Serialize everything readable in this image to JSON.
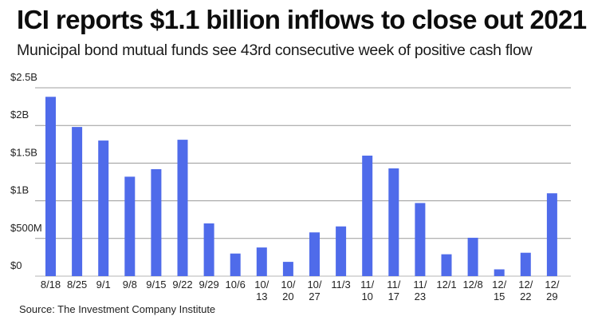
{
  "header": {
    "title": "ICI reports $1.1 billion inflows to close out 2021",
    "subtitle": "Municipal bond mutual funds see 43rd consecutive week of positive cash flow"
  },
  "footer": {
    "source": "Source: The Investment Company Institute"
  },
  "chart_data": {
    "type": "bar",
    "title": "ICI reports $1.1 billion inflows to close out 2021",
    "subtitle": "Municipal bond mutual funds see 43rd consecutive week of positive cash flow",
    "xlabel": "",
    "ylabel": "",
    "units": "USD billions",
    "ylim": [
      0,
      2.5
    ],
    "grid": true,
    "legend": "none",
    "bar_color": "#4f6bea",
    "yticks": [
      {
        "value": 0,
        "label": "$0"
      },
      {
        "value": 0.5,
        "label": "$500M"
      },
      {
        "value": 1.0,
        "label": "$1B"
      },
      {
        "value": 1.5,
        "label": "$1.5B"
      },
      {
        "value": 2.0,
        "label": "$2B"
      },
      {
        "value": 2.5,
        "label": "$2.5B"
      }
    ],
    "categories": [
      [
        "8/18"
      ],
      [
        "8/25"
      ],
      [
        "9/1"
      ],
      [
        "9/8"
      ],
      [
        "9/15"
      ],
      [
        "9/22"
      ],
      [
        "9/29"
      ],
      [
        "10/6"
      ],
      [
        "10/",
        "13"
      ],
      [
        "10/",
        "20"
      ],
      [
        "10/",
        "27"
      ],
      [
        "11/3"
      ],
      [
        "11/",
        "10"
      ],
      [
        "11/",
        "17"
      ],
      [
        "11/",
        "23"
      ],
      [
        "12/1"
      ],
      [
        "12/8"
      ],
      [
        "12/",
        "15"
      ],
      [
        "12/",
        "22"
      ],
      [
        "12/",
        "29"
      ]
    ],
    "values": [
      2.38,
      1.98,
      1.8,
      1.32,
      1.42,
      1.81,
      0.7,
      0.3,
      0.38,
      0.19,
      0.58,
      0.66,
      1.6,
      1.43,
      0.97,
      0.29,
      0.51,
      0.09,
      0.31,
      1.1
    ],
    "source": "Source: The Investment Company Institute"
  }
}
